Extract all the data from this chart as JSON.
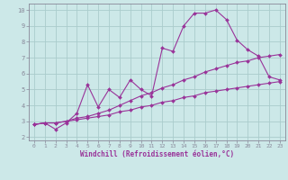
{
  "title": "",
  "xlabel": "Windchill (Refroidissement éolien,°C)",
  "ylabel": "",
  "bg_color": "#cce8e8",
  "line_color": "#993399",
  "grid_color": "#aacccc",
  "xlim": [
    -0.5,
    23.5
  ],
  "ylim": [
    1.8,
    10.4
  ],
  "xticks": [
    0,
    1,
    2,
    3,
    4,
    5,
    6,
    7,
    8,
    9,
    10,
    11,
    12,
    13,
    14,
    15,
    16,
    17,
    18,
    19,
    20,
    21,
    22,
    23
  ],
  "yticks": [
    2,
    3,
    4,
    5,
    6,
    7,
    8,
    9,
    10
  ],
  "line1_x": [
    0,
    1,
    2,
    3,
    4,
    5,
    6,
    7,
    8,
    9,
    10,
    11,
    12,
    13,
    14,
    15,
    16,
    17,
    18,
    19,
    20,
    21,
    22,
    23
  ],
  "line1_y": [
    2.8,
    2.9,
    2.5,
    2.9,
    3.5,
    5.3,
    3.9,
    5.0,
    4.5,
    5.6,
    5.0,
    4.6,
    7.6,
    7.4,
    9.0,
    9.8,
    9.8,
    10.0,
    9.4,
    8.1,
    7.5,
    7.1,
    5.8,
    5.6
  ],
  "line2_x": [
    0,
    1,
    2,
    3,
    4,
    5,
    6,
    7,
    8,
    9,
    10,
    11,
    12,
    13,
    14,
    15,
    16,
    17,
    18,
    19,
    20,
    21,
    22,
    23
  ],
  "line2_y": [
    2.8,
    2.9,
    2.9,
    3.0,
    3.2,
    3.3,
    3.5,
    3.7,
    4.0,
    4.3,
    4.6,
    4.8,
    5.1,
    5.3,
    5.6,
    5.8,
    6.1,
    6.3,
    6.5,
    6.7,
    6.8,
    7.0,
    7.1,
    7.2
  ],
  "line3_x": [
    0,
    1,
    2,
    3,
    4,
    5,
    6,
    7,
    8,
    9,
    10,
    11,
    12,
    13,
    14,
    15,
    16,
    17,
    18,
    19,
    20,
    21,
    22,
    23
  ],
  "line3_y": [
    2.8,
    2.9,
    2.9,
    3.0,
    3.1,
    3.2,
    3.3,
    3.4,
    3.6,
    3.7,
    3.9,
    4.0,
    4.2,
    4.3,
    4.5,
    4.6,
    4.8,
    4.9,
    5.0,
    5.1,
    5.2,
    5.3,
    5.4,
    5.5
  ]
}
